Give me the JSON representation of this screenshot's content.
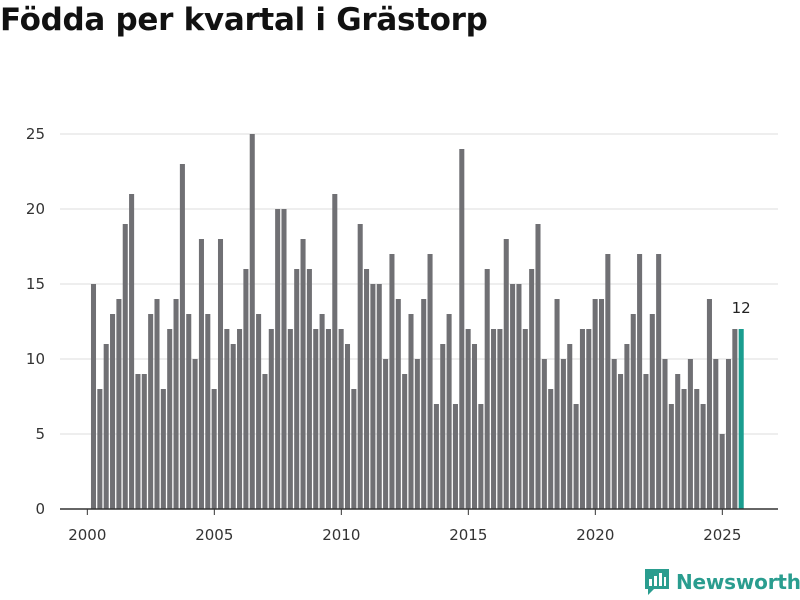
{
  "title": "Födda per kvartal i Grästorp",
  "brand": {
    "name": "Newsworthy"
  },
  "colors": {
    "bar": "#707074",
    "highlight": "#1a9d8f",
    "grid": "#dddddd",
    "axis": "#333333"
  },
  "chart_data": {
    "type": "bar",
    "title": "Födda per kvartal i Grästorp",
    "xlabel": "",
    "ylabel": "",
    "ylim": [
      0,
      25
    ],
    "yticks": [
      0,
      5,
      10,
      15,
      20,
      25
    ],
    "xticks": [
      "2000",
      "2005",
      "2010",
      "2015",
      "2020",
      "2025"
    ],
    "start_year": 2000,
    "start_quarter": 1,
    "highlight_last": true,
    "last_value_label": "12",
    "values": [
      15,
      8,
      11,
      13,
      14,
      19,
      21,
      9,
      9,
      13,
      14,
      8,
      12,
      14,
      23,
      13,
      10,
      18,
      13,
      8,
      18,
      12,
      11,
      12,
      16,
      25,
      13,
      9,
      12,
      20,
      20,
      12,
      16,
      18,
      16,
      12,
      13,
      12,
      21,
      12,
      11,
      8,
      19,
      16,
      15,
      15,
      10,
      17,
      14,
      9,
      13,
      10,
      14,
      17,
      7,
      11,
      13,
      7,
      24,
      12,
      11,
      7,
      16,
      12,
      12,
      18,
      15,
      15,
      12,
      16,
      19,
      10,
      8,
      14,
      10,
      11,
      7,
      12,
      12,
      14,
      14,
      17,
      10,
      9,
      11,
      13,
      17,
      9,
      13,
      17,
      10,
      7,
      9,
      8,
      10,
      8,
      7,
      14,
      10,
      5,
      10,
      12,
      12
    ]
  }
}
